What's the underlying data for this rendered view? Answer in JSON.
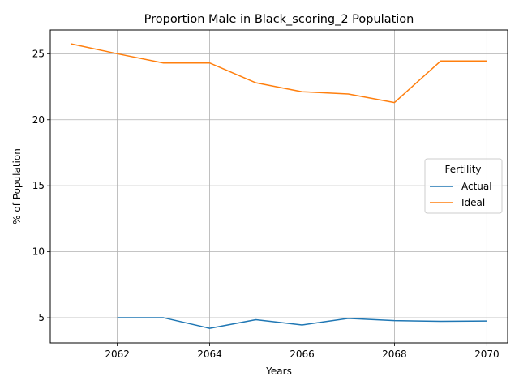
{
  "chart_data": {
    "type": "line",
    "title": "Proportion Male in Black_scoring_2 Population",
    "xlabel": "Years",
    "ylabel": "% of Population",
    "xlim": [
      2060.55,
      2070.45
    ],
    "ylim": [
      3.1,
      26.8
    ],
    "x_ticks": [
      2062,
      2064,
      2066,
      2068,
      2070
    ],
    "y_ticks": [
      5,
      10,
      15,
      20,
      25
    ],
    "grid": true,
    "legend": {
      "title": "Fertility",
      "placement": "center-right"
    },
    "series": [
      {
        "name": "Actual",
        "color": "#1f77b4",
        "x": [
          2062,
          2063,
          2064,
          2065,
          2066,
          2067,
          2068,
          2069,
          2070
        ],
        "values": [
          5.0,
          5.0,
          4.2,
          4.85,
          4.45,
          4.95,
          4.78,
          4.73,
          4.75
        ]
      },
      {
        "name": "Ideal",
        "color": "#ff7f0e",
        "x": [
          2061,
          2062,
          2063,
          2064,
          2065,
          2066,
          2067,
          2068,
          2069,
          2070
        ],
        "values": [
          25.75,
          25.0,
          24.3,
          24.3,
          22.8,
          22.12,
          21.95,
          21.3,
          24.45,
          24.45
        ]
      }
    ]
  }
}
